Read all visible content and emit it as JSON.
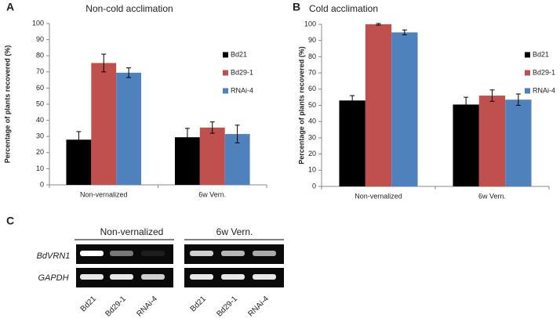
{
  "chart_data": [
    {
      "type": "bar",
      "panel_label": "A",
      "title": "Non-cold acclimation",
      "y_label": "Percentage of plants recovered (%)",
      "categories": [
        "Non-vernalized",
        "6w Vern."
      ],
      "series": [
        {
          "name": "Bd21",
          "color": "#000000",
          "values": [
            28,
            29.5
          ],
          "errors": [
            5,
            5.5
          ]
        },
        {
          "name": "Bd29-1",
          "color": "#c0504d",
          "values": [
            75.5,
            35.5
          ],
          "errors": [
            5.5,
            3.5
          ]
        },
        {
          "name": "RNAi-4",
          "color": "#4f81bd",
          "values": [
            69.5,
            31.5
          ],
          "errors": [
            3,
            5.5
          ]
        }
      ],
      "ylim": [
        0,
        100
      ],
      "yticks": [
        0,
        10,
        20,
        30,
        40,
        50,
        60,
        70,
        80,
        90,
        100
      ],
      "legend": "right"
    },
    {
      "type": "bar",
      "panel_label": "B",
      "title": "Cold acclimation",
      "y_label": "Percentage of plants recovered (%)",
      "categories": [
        "Non-vernalized",
        "6w Vern."
      ],
      "series": [
        {
          "name": "Bd21",
          "color": "#000000",
          "values": [
            53,
            50.5
          ],
          "errors": [
            3,
            4.5
          ]
        },
        {
          "name": "Bd29-1",
          "color": "#c0504d",
          "values": [
            100,
            56
          ],
          "errors": [
            0.5,
            3.5
          ]
        },
        {
          "name": "RNAi-4",
          "color": "#4f81bd",
          "values": [
            95,
            53.5
          ],
          "errors": [
            1.5,
            3.5
          ]
        }
      ],
      "ylim": [
        0,
        100
      ],
      "yticks": [
        0,
        10,
        20,
        30,
        40,
        50,
        60,
        70,
        80,
        90,
        100
      ],
      "legend": "right"
    }
  ],
  "panel_c": {
    "label": "C",
    "groups": [
      "Non-vernalized",
      "6w Vern."
    ],
    "genes": [
      "BdVRN1",
      "GAPDH"
    ],
    "lanes": [
      "Bd21",
      "Bd29-1",
      "RNAi-4",
      "Bd21",
      "Bd29-1",
      "RNAi-4"
    ]
  }
}
